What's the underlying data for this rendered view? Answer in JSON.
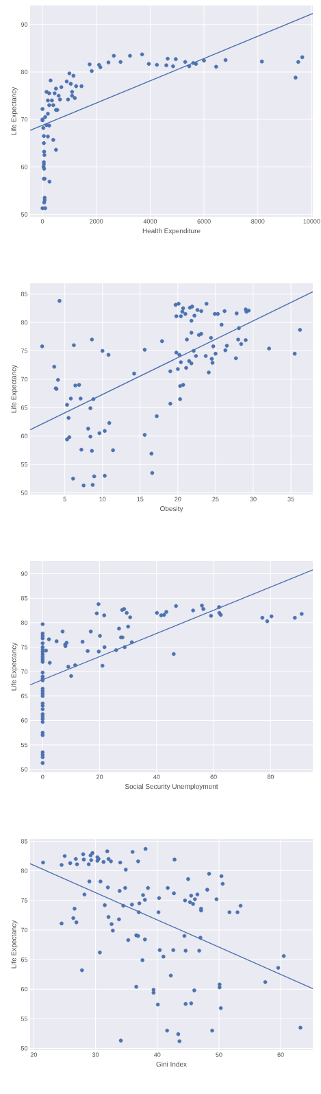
{
  "chart_data": [
    {
      "type": "scatter",
      "xlabel": "Health Expenditure",
      "ylabel": "Life Expectancy",
      "xlim": [
        -460,
        10040
      ],
      "ylim": [
        49.5,
        94
      ],
      "xticks": [
        0,
        2000,
        4000,
        6000,
        8000,
        10000
      ],
      "yticks": [
        50,
        60,
        70,
        80,
        90
      ],
      "grid": true,
      "series": [
        {
          "marker": "circle",
          "color": "#4c72b0",
          "x": [
            0,
            0,
            0,
            30,
            50,
            50,
            60,
            70,
            50,
            50,
            40,
            60,
            50,
            80,
            80,
            80,
            60,
            0,
            100,
            260,
            400,
            500,
            200,
            150,
            250,
            100,
            200,
            250,
            200,
            150,
            250,
            300,
            350,
            400,
            450,
            500,
            500,
            550,
            600,
            650,
            700,
            950,
            900,
            1000,
            1050,
            1100,
            1150,
            1100,
            1200,
            1250,
            1450,
            1750,
            1830,
            2100,
            2150,
            2450,
            2650,
            2900,
            3250,
            3700,
            3950,
            4250,
            4600,
            4650,
            4850,
            4950,
            5300,
            5450,
            5600,
            5700,
            6000,
            6450,
            6800,
            8150,
            9400,
            9500,
            9650
          ],
          "values": [
            72.2,
            70,
            69.8,
            68.2,
            66.5,
            65,
            63.2,
            62.5,
            61,
            60.5,
            60,
            59.6,
            57.5,
            57.5,
            53.5,
            53,
            52.5,
            51.3,
            51.3,
            56.9,
            65.7,
            63.6,
            66.4,
            68.8,
            68.7,
            70.5,
            71.2,
            73,
            74,
            75.8,
            75.5,
            78.2,
            74,
            73,
            75.5,
            76.5,
            72,
            72,
            75,
            74.2,
            76.8,
            74.2,
            78,
            79.7,
            77.5,
            75.8,
            79.2,
            75,
            74.5,
            77,
            77,
            81.6,
            80.2,
            81.5,
            81,
            82,
            83.4,
            82.1,
            83.4,
            83.7,
            81.7,
            81.5,
            81.4,
            82.8,
            81.2,
            82.7,
            82.1,
            81.2,
            81.9,
            81.7,
            82.4,
            81.1,
            82.5,
            82.2,
            78.8,
            82.1,
            83.1
          ]
        },
        {
          "type": "line",
          "marker": "none",
          "color": "#4c72b0",
          "x": [
            -460,
            10040
          ],
          "values": [
            67.7,
            92.3
          ]
        }
      ]
    },
    {
      "type": "scatter",
      "xlabel": "Obesity",
      "ylabel": "Life Expectancy",
      "xlim": [
        0.4,
        37.9
      ],
      "ylim": [
        49.7,
        86.9
      ],
      "xticks": [
        5,
        10,
        15,
        20,
        25,
        30,
        35
      ],
      "yticks": [
        50,
        55,
        60,
        65,
        70,
        75,
        80,
        85
      ],
      "grid": true,
      "series": [
        {
          "marker": "circle",
          "color": "#4c72b0",
          "x": [
            2,
            3.6,
            3.8,
            3.9,
            4.1,
            4.3,
            5.3,
            5.5,
            5.3,
            5.6,
            6.1,
            6.2,
            6.4,
            6.9,
            7.1,
            5.8,
            7.2,
            7.5,
            8.1,
            8.4,
            8.4,
            8.6,
            8.6,
            8.7,
            8.8,
            8.9,
            9.6,
            10,
            10.3,
            10.3,
            10.8,
            10.9,
            11.4,
            14.2,
            15.6,
            15.6,
            16.5,
            16.6,
            17.2,
            17.9,
            19,
            19,
            19.7,
            19.8,
            19.8,
            20,
            20.1,
            20.3,
            20.3,
            20.4,
            20.4,
            20.2,
            20.6,
            20.7,
            20.7,
            21,
            21.1,
            21.2,
            21.5,
            21.6,
            21.8,
            21.8,
            21.8,
            21.9,
            22.1,
            22.2,
            22.4,
            22.6,
            22.8,
            23.1,
            23.1,
            23.7,
            23.8,
            24.1,
            24.4,
            24.5,
            24.6,
            24.7,
            24.9,
            25,
            25.3,
            25.8,
            26.2,
            26.3,
            26.5,
            27.7,
            27.8,
            28,
            28.1,
            28.4,
            29,
            29,
            29.1,
            29.4,
            32.1,
            35.5,
            36.2
          ],
          "values": [
            75.8,
            72.2,
            68.4,
            68.3,
            69.9,
            83.8,
            65.5,
            63.2,
            59.4,
            59.8,
            52.5,
            76,
            68.9,
            69,
            66.6,
            66.6,
            57.6,
            51.3,
            61.3,
            64.9,
            59.9,
            57.4,
            77,
            51.4,
            66.5,
            52.9,
            60.5,
            75,
            53,
            60.9,
            74.3,
            62.3,
            57.5,
            71,
            60.2,
            75.2,
            56.9,
            53.5,
            63.5,
            76.7,
            71.4,
            65.7,
            83.1,
            81.1,
            74.7,
            71.8,
            83.3,
            68.8,
            66.5,
            73,
            81.1,
            74.3,
            81.9,
            82.5,
            69,
            81.5,
            72,
            77,
            73.2,
            82.6,
            72.8,
            78.2,
            80.3,
            82.8,
            75,
            81.2,
            74.1,
            82.2,
            77.8,
            82,
            78,
            74.1,
            83.3,
            71.2,
            77.3,
            73.6,
            72.9,
            75.8,
            81.5,
            74.5,
            81.5,
            79.6,
            82,
            75.1,
            75.9,
            73.7,
            81.6,
            77,
            79,
            76.2,
            82.3,
            76.9,
            81.9,
            82.1,
            75.4,
            74.5,
            78.7
          ]
        },
        {
          "type": "line",
          "marker": "none",
          "color": "#4c72b0",
          "x": [
            0.4,
            37.9
          ],
          "values": [
            61.1,
            85.4
          ]
        }
      ]
    },
    {
      "type": "scatter",
      "xlabel": "Social Security Unemployment",
      "ylabel": "Life Expectancy",
      "xlim": [
        -4.4,
        94.8
      ],
      "ylim": [
        49.4,
        92.6
      ],
      "xticks": [
        0,
        20,
        40,
        60,
        80
      ],
      "yticks": [
        50,
        55,
        60,
        65,
        70,
        75,
        80,
        85,
        90
      ],
      "grid": true,
      "series": [
        {
          "marker": "circle",
          "color": "#4c72b0",
          "x": [
            0,
            0,
            0,
            0,
            0,
            0,
            0,
            0,
            0,
            0,
            0,
            0,
            0,
            0,
            0,
            0,
            0,
            0,
            0,
            0,
            0,
            0,
            0,
            0,
            0,
            0,
            0,
            0,
            0,
            0,
            0,
            0,
            0,
            1.2,
            2.2,
            2.5,
            4.9,
            7,
            7.9,
            8,
            8.4,
            9,
            10,
            11.4,
            14,
            15.8,
            16.9,
            19,
            19.6,
            19.7,
            20.1,
            21,
            21.6,
            21.7,
            25.8,
            26.8,
            27.5,
            27.9,
            28,
            28.6,
            28.8,
            29.5,
            30,
            30.7,
            31.3,
            40.1,
            41.6,
            42.6,
            43.4,
            46,
            46.8,
            52.8,
            55.9,
            56.4,
            59.1,
            61.9,
            62,
            62.5,
            77.1,
            78.8,
            80.3,
            88.5,
            90.9
          ],
          "values": [
            79.7,
            77.8,
            77.3,
            76.8,
            75.8,
            75,
            74.5,
            74,
            73.5,
            73,
            72.5,
            72,
            69.8,
            69,
            68.5,
            68.2,
            66.5,
            66,
            65.5,
            65,
            63.5,
            63,
            62.3,
            61.3,
            60.8,
            60.3,
            59.7,
            57.5,
            57,
            53.5,
            53,
            52.5,
            51.3,
            74.3,
            76.6,
            71.8,
            76.2,
            78.2,
            75.5,
            75.2,
            75.9,
            71,
            69.1,
            71.3,
            76.1,
            74.2,
            78.2,
            81.9,
            83.8,
            74.1,
            77.3,
            71.2,
            81.5,
            75,
            74.4,
            78.8,
            77,
            82.6,
            77,
            82.8,
            75,
            82,
            79.2,
            81.1,
            76,
            82,
            81.5,
            81.6,
            82.2,
            73.6,
            83.4,
            82.5,
            83.5,
            82.8,
            81.4,
            83.2,
            82,
            81.6,
            81,
            80.3,
            81.3,
            81,
            81.8
          ]
        },
        {
          "type": "line",
          "marker": "none",
          "color": "#4c72b0",
          "x": [
            -4.4,
            94.8
          ],
          "values": [
            67.3,
            90.8
          ]
        }
      ]
    },
    {
      "type": "scatter",
      "xlabel": "Gini Index",
      "ylabel": "Life Expectancy",
      "xlim": [
        19.4,
        65.2
      ],
      "ylim": [
        49.7,
        85.4
      ],
      "xticks": [
        20,
        30,
        40,
        50,
        60
      ],
      "yticks": [
        50,
        55,
        60,
        65,
        70,
        75,
        80,
        85
      ],
      "grid": true,
      "series": [
        {
          "marker": "circle",
          "color": "#4c72b0",
          "x": [
            21.5,
            24.5,
            24.5,
            25,
            25.9,
            26.4,
            26.6,
            26.8,
            26.9,
            27,
            27.8,
            28,
            28.1,
            28.2,
            28.9,
            29,
            29.2,
            29.3,
            29.5,
            30.3,
            30.3,
            30.5,
            30.7,
            30.8,
            31.3,
            31.5,
            31.9,
            32,
            32.1,
            32.1,
            32.5,
            32.6,
            32.8,
            33.8,
            33.9,
            34,
            34.1,
            34.5,
            34.8,
            34.9,
            35.3,
            35.9,
            36,
            36.6,
            36.6,
            36.9,
            36.9,
            37,
            37.1,
            37.6,
            37.7,
            38,
            38,
            38.1,
            38.5,
            39.4,
            39.4,
            40.1,
            40.2,
            40.3,
            40.4,
            41,
            41.6,
            41.7,
            42.2,
            42.6,
            42.7,
            42.8,
            43.4,
            43.6,
            44.4,
            44.5,
            44.6,
            44.6,
            45,
            45.3,
            45.5,
            45.5,
            45.8,
            46,
            46.1,
            46.5,
            46.8,
            47,
            47.1,
            47.1,
            48.1,
            48.4,
            48.9,
            49.6,
            50.1,
            50.1,
            50.3,
            50.4,
            50.6,
            51.7,
            53,
            53.5,
            57.5,
            59.6,
            60.5,
            63.2
          ],
          "values": [
            81.4,
            71.1,
            81,
            82.5,
            81.3,
            72,
            73.6,
            82,
            71.3,
            81.1,
            63.2,
            82.8,
            81.9,
            76,
            81.1,
            78.2,
            82.6,
            81.8,
            83,
            82.3,
            81.7,
            82,
            66.2,
            78.2,
            81.5,
            74.2,
            83.3,
            77.2,
            72.2,
            82,
            81.6,
            71,
            69.9,
            71.8,
            76.6,
            81.4,
            51.3,
            74.1,
            77.1,
            80.2,
            68.3,
            74.3,
            83.2,
            60.4,
            69.1,
            69,
            81.6,
            73,
            74.5,
            64.9,
            75.9,
            75.1,
            68.4,
            83.7,
            77.1,
            59.9,
            59.4,
            57.4,
            73,
            75.4,
            66.6,
            65.5,
            53,
            77.1,
            62.3,
            66.6,
            76.2,
            81.9,
            52.4,
            51.2,
            69,
            75,
            57.5,
            66.5,
            78.6,
            74.7,
            75.8,
            57.6,
            74.4,
            59.8,
            75.2,
            76,
            66.5,
            68.7,
            73.6,
            73.3,
            76.8,
            79.5,
            53,
            75.2,
            60.3,
            60.8,
            56.8,
            79.1,
            77.8,
            73,
            73,
            74.1,
            61.2,
            63.6,
            65.6,
            53.5
          ]
        },
        {
          "type": "line",
          "marker": "none",
          "color": "#4c72b0",
          "x": [
            19.4,
            65.2
          ],
          "values": [
            81.2,
            60.1
          ]
        }
      ]
    }
  ]
}
